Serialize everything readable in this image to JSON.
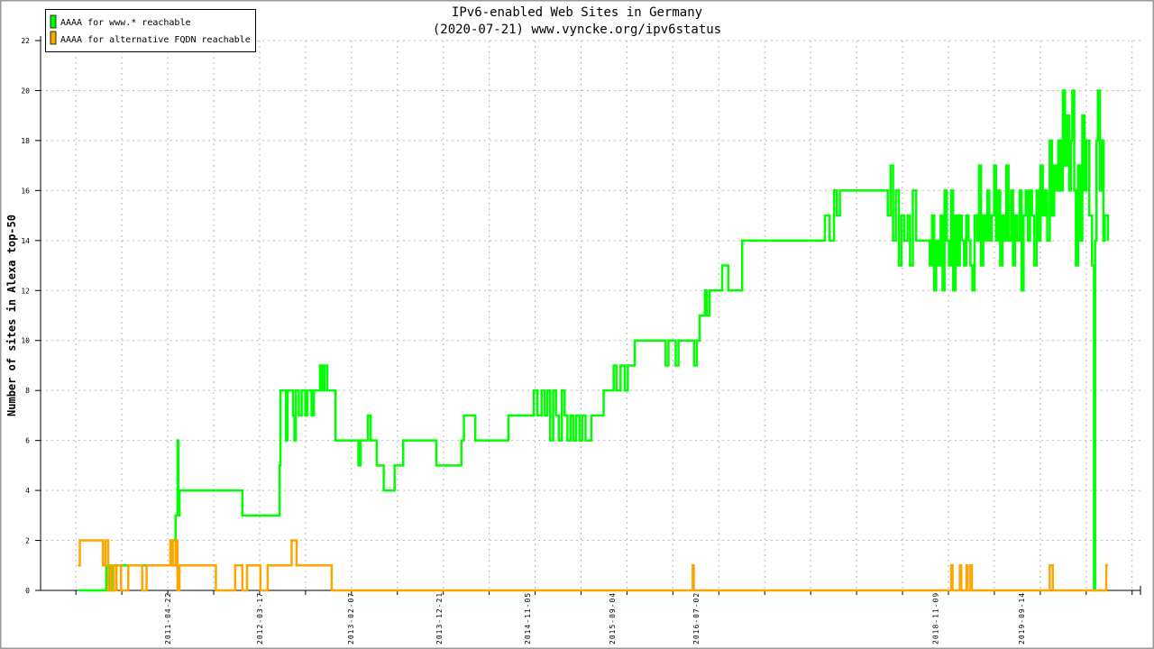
{
  "chart_data": {
    "type": "line",
    "title": "IPv6-enabled Web Sites in Germany",
    "subtitle": "(2020-07-21) www.vyncke.org/ipv6status",
    "xlabel": "",
    "ylabel": "Number of sites in Alexa top-50",
    "ylim": [
      0,
      22
    ],
    "yticks": [
      0,
      2,
      4,
      6,
      8,
      10,
      12,
      14,
      16,
      18,
      20,
      22
    ],
    "xlim": [
      "2010-01-20",
      "2020-11-15"
    ],
    "xticks": [
      "2011-04-22",
      "2012-03-17",
      "2013-02-07",
      "2013-12-21",
      "2014-11-05",
      "2015-09-04",
      "2016-07-02",
      "2018-11-09",
      "2019-09-14"
    ],
    "grid": true,
    "legend_position": "top-left",
    "series": [
      {
        "name": "AAAA for www.* reachable",
        "color": "#00ff00",
        "points": [
          [
            "2010-06-05",
            0
          ],
          [
            "2010-09-13",
            1
          ],
          [
            "2010-09-25",
            0
          ],
          [
            "2010-10-05",
            1
          ],
          [
            "2011-05-07",
            2
          ],
          [
            "2011-05-20",
            3
          ],
          [
            "2011-05-27",
            6
          ],
          [
            "2011-05-30",
            3
          ],
          [
            "2011-06-03",
            4
          ],
          [
            "2012-01-15",
            3
          ],
          [
            "2012-05-28",
            5
          ],
          [
            "2012-05-31",
            8
          ],
          [
            "2012-06-15",
            8
          ],
          [
            "2012-06-20",
            6
          ],
          [
            "2012-06-25",
            8
          ],
          [
            "2012-07-10",
            8
          ],
          [
            "2012-07-15",
            7
          ],
          [
            "2012-07-20",
            6
          ],
          [
            "2012-07-25",
            8
          ],
          [
            "2012-08-05",
            7
          ],
          [
            "2012-08-15",
            8
          ],
          [
            "2012-08-28",
            7
          ],
          [
            "2012-09-05",
            8
          ],
          [
            "2012-09-20",
            7
          ],
          [
            "2012-09-28",
            8
          ],
          [
            "2012-10-10",
            8
          ],
          [
            "2012-10-20",
            9
          ],
          [
            "2012-10-28",
            8
          ],
          [
            "2012-11-05",
            9
          ],
          [
            "2012-11-15",
            8
          ],
          [
            "2012-12-15",
            6
          ],
          [
            "2013-03-07",
            5
          ],
          [
            "2013-03-15",
            6
          ],
          [
            "2013-04-10",
            7
          ],
          [
            "2013-04-20",
            6
          ],
          [
            "2013-05-12",
            5
          ],
          [
            "2013-06-06",
            4
          ],
          [
            "2013-07-15",
            5
          ],
          [
            "2013-08-15",
            6
          ],
          [
            "2013-12-12",
            5
          ],
          [
            "2014-03-12",
            6
          ],
          [
            "2014-03-21",
            7
          ],
          [
            "2014-05-01",
            6
          ],
          [
            "2014-08-28",
            7
          ],
          [
            "2014-11-27",
            8
          ],
          [
            "2014-12-10",
            7
          ],
          [
            "2014-12-25",
            8
          ],
          [
            "2015-01-05",
            7
          ],
          [
            "2015-01-15",
            8
          ],
          [
            "2015-01-25",
            6
          ],
          [
            "2015-02-05",
            8
          ],
          [
            "2015-02-15",
            7
          ],
          [
            "2015-02-25",
            6
          ],
          [
            "2015-03-08",
            8
          ],
          [
            "2015-03-18",
            7
          ],
          [
            "2015-03-28",
            6
          ],
          [
            "2015-04-08",
            7
          ],
          [
            "2015-04-18",
            6
          ],
          [
            "2015-04-28",
            7
          ],
          [
            "2015-05-10",
            6
          ],
          [
            "2015-05-20",
            7
          ],
          [
            "2015-06-01",
            6
          ],
          [
            "2015-06-22",
            7
          ],
          [
            "2015-08-05",
            8
          ],
          [
            "2015-09-10",
            9
          ],
          [
            "2015-09-20",
            8
          ],
          [
            "2015-10-05",
            9
          ],
          [
            "2015-10-20",
            8
          ],
          [
            "2015-10-31",
            9
          ],
          [
            "2015-11-25",
            10
          ],
          [
            "2016-03-15",
            9
          ],
          [
            "2016-03-25",
            10
          ],
          [
            "2016-04-20",
            9
          ],
          [
            "2016-04-30",
            10
          ],
          [
            "2016-06-25",
            9
          ],
          [
            "2016-07-05",
            10
          ],
          [
            "2016-07-15",
            11
          ],
          [
            "2016-08-03",
            12
          ],
          [
            "2016-08-10",
            11
          ],
          [
            "2016-08-20",
            12
          ],
          [
            "2016-10-04",
            13
          ],
          [
            "2016-10-26",
            12
          ],
          [
            "2016-12-15",
            14
          ],
          [
            "2017-10-08",
            15
          ],
          [
            "2017-10-25",
            14
          ],
          [
            "2017-11-10",
            16
          ],
          [
            "2017-11-20",
            15
          ],
          [
            "2017-12-01",
            16
          ],
          [
            "2018-05-22",
            15
          ],
          [
            "2018-06-01",
            17
          ],
          [
            "2018-06-10",
            14
          ],
          [
            "2018-06-20",
            16
          ],
          [
            "2018-07-01",
            13
          ],
          [
            "2018-07-10",
            15
          ],
          [
            "2018-07-20",
            14
          ],
          [
            "2018-08-01",
            15
          ],
          [
            "2018-08-10",
            13
          ],
          [
            "2018-08-20",
            16
          ],
          [
            "2018-09-01",
            14
          ],
          [
            "2018-10-20",
            13
          ],
          [
            "2018-10-28",
            15
          ],
          [
            "2018-11-05",
            12
          ],
          [
            "2018-11-12",
            14
          ],
          [
            "2018-11-20",
            13
          ],
          [
            "2018-11-28",
            15
          ],
          [
            "2018-12-05",
            12
          ],
          [
            "2018-12-12",
            16
          ],
          [
            "2018-12-20",
            14
          ],
          [
            "2018-12-28",
            13
          ],
          [
            "2019-01-05",
            16
          ],
          [
            "2019-01-12",
            12
          ],
          [
            "2019-01-20",
            15
          ],
          [
            "2019-01-28",
            13
          ],
          [
            "2019-02-05",
            15
          ],
          [
            "2019-02-12",
            14
          ],
          [
            "2019-02-20",
            13
          ],
          [
            "2019-02-28",
            15
          ],
          [
            "2019-03-08",
            14
          ],
          [
            "2019-03-15",
            13
          ],
          [
            "2019-03-22",
            12
          ],
          [
            "2019-03-30",
            15
          ],
          [
            "2019-04-08",
            14
          ],
          [
            "2019-04-15",
            17
          ],
          [
            "2019-04-22",
            13
          ],
          [
            "2019-04-30",
            15
          ],
          [
            "2019-05-08",
            14
          ],
          [
            "2019-05-15",
            16
          ],
          [
            "2019-05-22",
            14
          ],
          [
            "2019-05-30",
            15
          ],
          [
            "2019-06-08",
            17
          ],
          [
            "2019-06-15",
            14
          ],
          [
            "2019-06-22",
            16
          ],
          [
            "2019-06-30",
            13
          ],
          [
            "2019-07-08",
            15
          ],
          [
            "2019-07-15",
            14
          ],
          [
            "2019-07-22",
            17
          ],
          [
            "2019-07-30",
            14
          ],
          [
            "2019-08-08",
            16
          ],
          [
            "2019-08-15",
            13
          ],
          [
            "2019-08-22",
            15
          ],
          [
            "2019-08-30",
            14
          ],
          [
            "2019-09-08",
            16
          ],
          [
            "2019-09-15",
            12
          ],
          [
            "2019-09-22",
            15
          ],
          [
            "2019-09-30",
            16
          ],
          [
            "2019-10-08",
            14
          ],
          [
            "2019-10-15",
            16
          ],
          [
            "2019-10-22",
            15
          ],
          [
            "2019-10-30",
            13
          ],
          [
            "2019-11-08",
            16
          ],
          [
            "2019-11-15",
            14
          ],
          [
            "2019-11-22",
            17
          ],
          [
            "2019-11-30",
            15
          ],
          [
            "2019-12-08",
            16
          ],
          [
            "2019-12-16",
            14
          ],
          [
            "2019-12-25",
            18
          ],
          [
            "2020-01-02",
            15
          ],
          [
            "2020-01-10",
            17
          ],
          [
            "2020-01-18",
            16
          ],
          [
            "2020-01-25",
            18
          ],
          [
            "2020-02-02",
            16
          ],
          [
            "2020-02-10",
            20
          ],
          [
            "2020-02-18",
            17
          ],
          [
            "2020-02-25",
            19
          ],
          [
            "2020-03-04",
            16
          ],
          [
            "2020-03-10",
            18
          ],
          [
            "2020-03-15",
            20
          ],
          [
            "2020-03-22",
            16
          ],
          [
            "2020-03-28",
            13
          ],
          [
            "2020-04-05",
            17
          ],
          [
            "2020-04-12",
            14
          ],
          [
            "2020-04-20",
            19
          ],
          [
            "2020-04-28",
            16
          ],
          [
            "2020-05-05",
            18
          ],
          [
            "2020-05-15",
            15
          ],
          [
            "2020-05-25",
            13
          ],
          [
            "2020-06-01",
            0
          ],
          [
            "2020-06-05",
            14
          ],
          [
            "2020-06-10",
            18
          ],
          [
            "2020-06-15",
            20
          ],
          [
            "2020-06-22",
            16
          ],
          [
            "2020-06-28",
            18
          ],
          [
            "2020-07-05",
            14
          ],
          [
            "2020-07-10",
            15
          ],
          [
            "2020-07-21",
            14
          ]
        ]
      },
      {
        "name": "AAAA for alternative FQDN reachable",
        "color": "#ffa500",
        "points": [
          [
            "2010-06-05",
            1
          ],
          [
            "2010-06-10",
            2
          ],
          [
            "2010-09-01",
            1
          ],
          [
            "2010-09-10",
            2
          ],
          [
            "2010-09-20",
            0
          ],
          [
            "2010-09-30",
            1
          ],
          [
            "2010-10-10",
            0
          ],
          [
            "2010-10-20",
            1
          ],
          [
            "2010-11-05",
            0
          ],
          [
            "2010-12-01",
            1
          ],
          [
            "2011-01-20",
            0
          ],
          [
            "2011-02-05",
            1
          ],
          [
            "2011-05-01",
            2
          ],
          [
            "2011-05-10",
            1
          ],
          [
            "2011-05-20",
            2
          ],
          [
            "2011-05-27",
            0
          ],
          [
            "2011-06-03",
            1
          ],
          [
            "2011-10-12",
            0
          ],
          [
            "2011-12-20",
            1
          ],
          [
            "2012-01-15",
            0
          ],
          [
            "2012-02-01",
            1
          ],
          [
            "2012-03-20",
            0
          ],
          [
            "2012-04-15",
            1
          ],
          [
            "2012-07-10",
            2
          ],
          [
            "2012-07-28",
            1
          ],
          [
            "2012-12-01",
            0
          ],
          [
            "2016-06-20",
            1
          ],
          [
            "2016-06-24",
            0
          ],
          [
            "2019-01-05",
            1
          ],
          [
            "2019-01-10",
            0
          ],
          [
            "2019-02-05",
            1
          ],
          [
            "2019-02-10",
            0
          ],
          [
            "2019-03-01",
            1
          ],
          [
            "2019-03-05",
            0
          ],
          [
            "2019-03-15",
            1
          ],
          [
            "2019-03-20",
            0
          ],
          [
            "2019-12-25",
            1
          ],
          [
            "2020-01-05",
            0
          ],
          [
            "2020-07-15",
            1
          ],
          [
            "2020-07-21",
            1
          ]
        ]
      }
    ]
  }
}
